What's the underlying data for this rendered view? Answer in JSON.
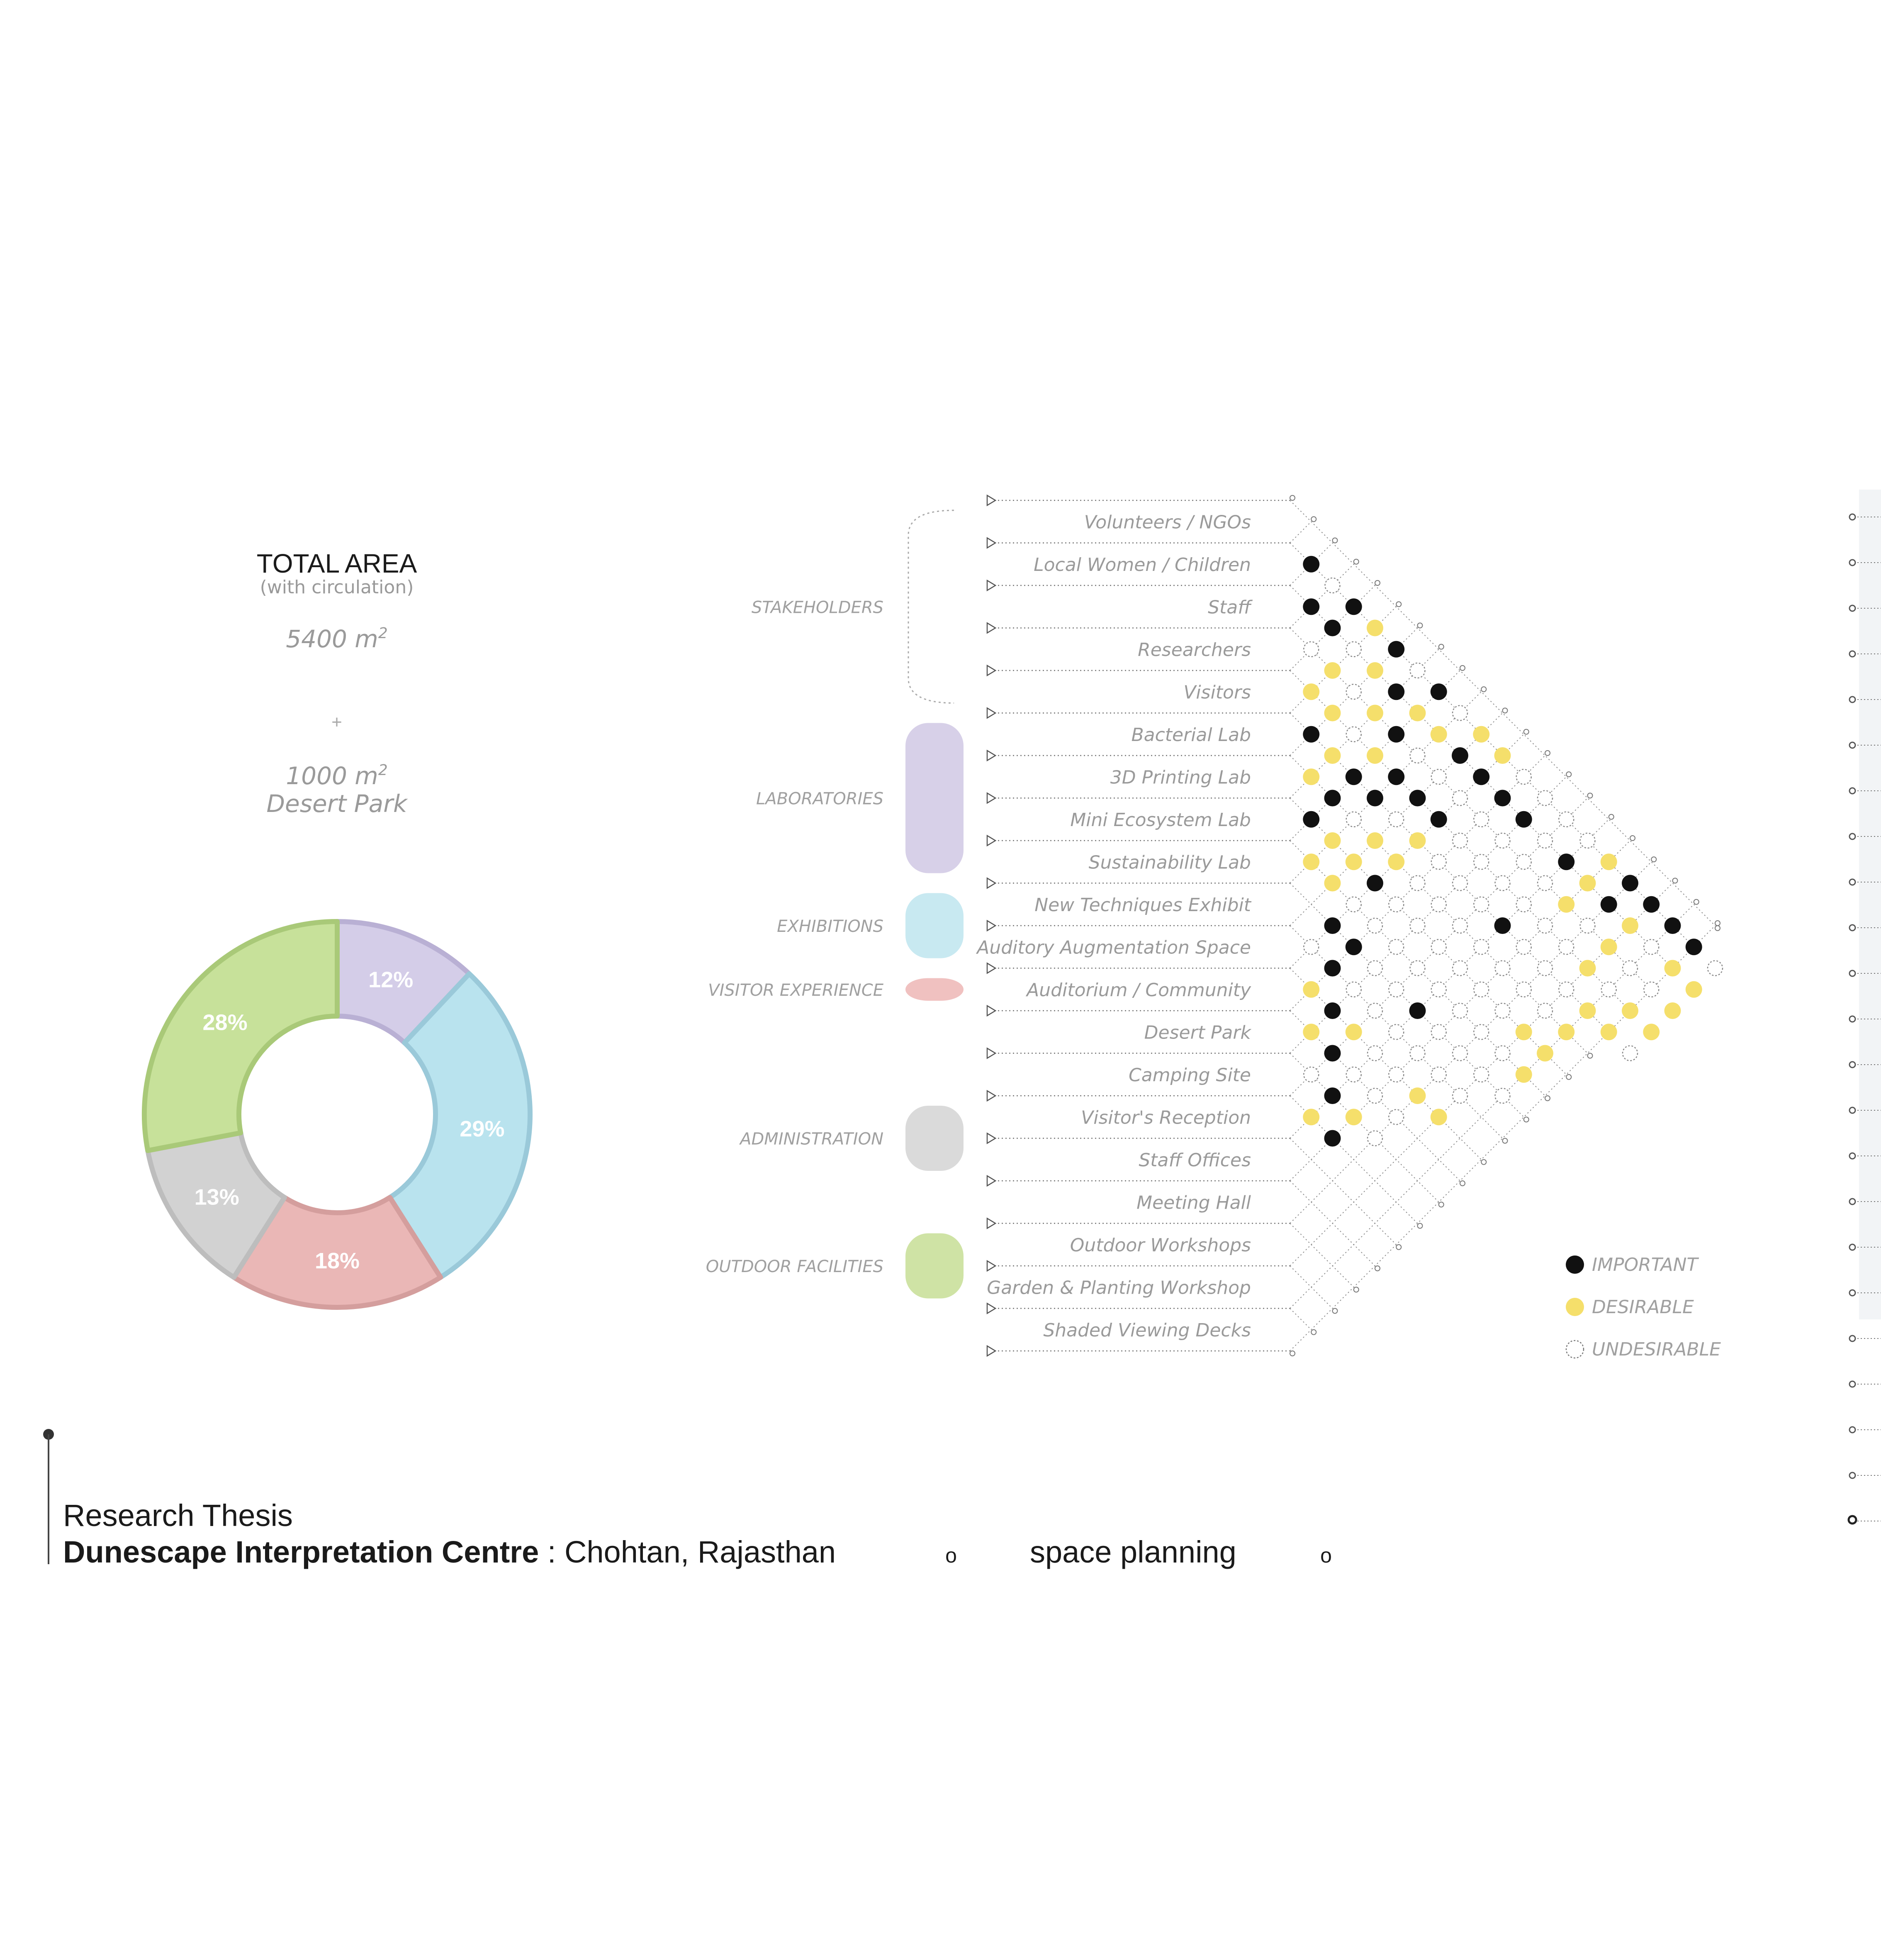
{
  "total_area": {
    "title": "TOTAL AREA",
    "subtitle": "(with circulation)",
    "area": "5400 m",
    "area_sup": "2",
    "plus": "+",
    "park_area": "1000 m",
    "park_sup": "2",
    "park_label": "Desert Park"
  },
  "colors": {
    "stakeholders": "#ffffff",
    "laboratories": "#d7d0e8",
    "exhibitions": "#c8e9f1",
    "visitor_experience": "#f0c1c0",
    "administration": "#dadada",
    "outdoor_facilities": "#cfe3a5",
    "important": "#111111",
    "desirable": "#f5df6b",
    "undesirable": "#888888"
  },
  "chart_data": {
    "type": "pie",
    "categories": [
      "LABORATORIES",
      "EXHIBITIONS",
      "VISITOR EXPERIENCE",
      "ADMINISTRATION",
      "OUTDOOR FACILITIES"
    ],
    "values": [
      12,
      29,
      18,
      13,
      28
    ],
    "labels": [
      "12%",
      "29%",
      "18%",
      "13%",
      "28%"
    ],
    "colors": [
      "#d4cde8",
      "#b9e3ee",
      "#eab7b6",
      "#d2d2d2",
      "#c7e19a"
    ],
    "strokes": [
      "#b9b0d4",
      "#9ac9d9",
      "#d49e9d",
      "#bdbdbd",
      "#a9c978"
    ]
  },
  "groups": [
    {
      "label": "STAKEHOLDERS",
      "color": "stakeholders",
      "rows": [
        0,
        4
      ],
      "bracket": true
    },
    {
      "label": "LABORATORIES",
      "color": "laboratories",
      "rows": [
        5,
        8
      ]
    },
    {
      "label": "EXHIBITIONS",
      "color": "exhibitions",
      "rows": [
        9,
        10
      ]
    },
    {
      "label": "VISITOR EXPERIENCE",
      "color": "visitor_experience",
      "rows": [
        11,
        11
      ]
    },
    {
      "label": "ADMINISTRATION",
      "color": "administration",
      "rows": [
        14,
        15
      ]
    },
    {
      "label": "OUTDOOR FACILITIES",
      "color": "outdoor_facilities",
      "rows": [
        17,
        18
      ]
    }
  ],
  "spaces": [
    "Volunteers / NGOs",
    "Local Women / Children",
    "Staff",
    "Researchers",
    "Visitors",
    "Bacterial Lab",
    "3D Printing Lab",
    "Mini Ecosystem Lab",
    "Sustainability Lab",
    "New Techniques Exhibit",
    "Auditory Augmentation Space",
    "Auditorium / Community",
    "Desert Park",
    "Camping Site",
    "Visitor's Reception",
    "Staff Offices",
    "Meeting Hall",
    "Outdoor Workshops",
    "Garden & Planting Workshop",
    "Shaded Viewing Decks"
  ],
  "matrix": [
    "I",
    "UI",
    "IIUD",
    "DUDDU",
    "IDUDID",
    "UIDUDDU",
    "IDIDIII",
    "UDUIIUDDI",
    "DIUIUDDD",
    "DIUIDDIUIU",
    "UIUUUUUUIID",
    "UIUUUUUUUUIDD",
    "UUUUUUUUUUDIUIID",
    "UIUUIUUUIUUUID",
    "DDDUUUUUUUUUDI",
    "IIUUUUUUUUDUU",
    "IDDDUUDUUUD",
    "IUUUDDDDU",
    "IDUDD",
    "UDDDU"
  ],
  "legend": [
    {
      "label": "IMPORTANT",
      "kind": "important"
    },
    {
      "label": "DESIRABLE",
      "kind": "desirable"
    },
    {
      "label": "UNDESIRABLE",
      "kind": "undesirable"
    }
  ],
  "footer": {
    "line1": "Research Thesis",
    "project": "Dunescape Interpretation Centre",
    "location": " : Chohtan, Rajasthan",
    "marker1": "o",
    "section": "space planning",
    "marker2": "o"
  }
}
